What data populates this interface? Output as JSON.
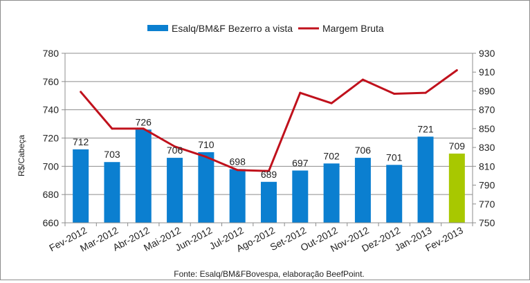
{
  "chart_data": {
    "type": "bar+line",
    "categories": [
      "Fev-2012",
      "Mar-2012",
      "Abr-2012",
      "Mai-2012",
      "Jun-2012",
      "Jul-2012",
      "Ago-2012",
      "Set-2012",
      "Out-2012",
      "Nov-2012",
      "Dez-2012",
      "Jan-2013",
      "Fev-2013"
    ],
    "series": [
      {
        "name": "Esalq/BM&F Bezerro a vista",
        "type": "bar",
        "axis": "left",
        "values": [
          712,
          703,
          726,
          706,
          710,
          698,
          689,
          697,
          702,
          706,
          701,
          721,
          709
        ],
        "color": "#0b7fd0",
        "highlight_color": "#a8c800"
      },
      {
        "name": "Margem Bruta",
        "type": "line",
        "axis": "right",
        "values": [
          889,
          850,
          850,
          831,
          820,
          806,
          805,
          888,
          877,
          902,
          887,
          888,
          912
        ],
        "color": "#c0111c"
      }
    ],
    "y_left": {
      "label": "R$/Cabeça",
      "ylim": [
        660,
        780
      ],
      "ticks": [
        660,
        680,
        700,
        720,
        740,
        760,
        780
      ]
    },
    "y_right": {
      "label": "",
      "ylim": [
        750,
        930
      ],
      "ticks": [
        750,
        770,
        790,
        810,
        830,
        850,
        870,
        890,
        910,
        930
      ]
    },
    "grid": true,
    "legend": "top",
    "source": "Fonte: Esalq/BM&FBovespa, elaboração BeefPoint."
  }
}
